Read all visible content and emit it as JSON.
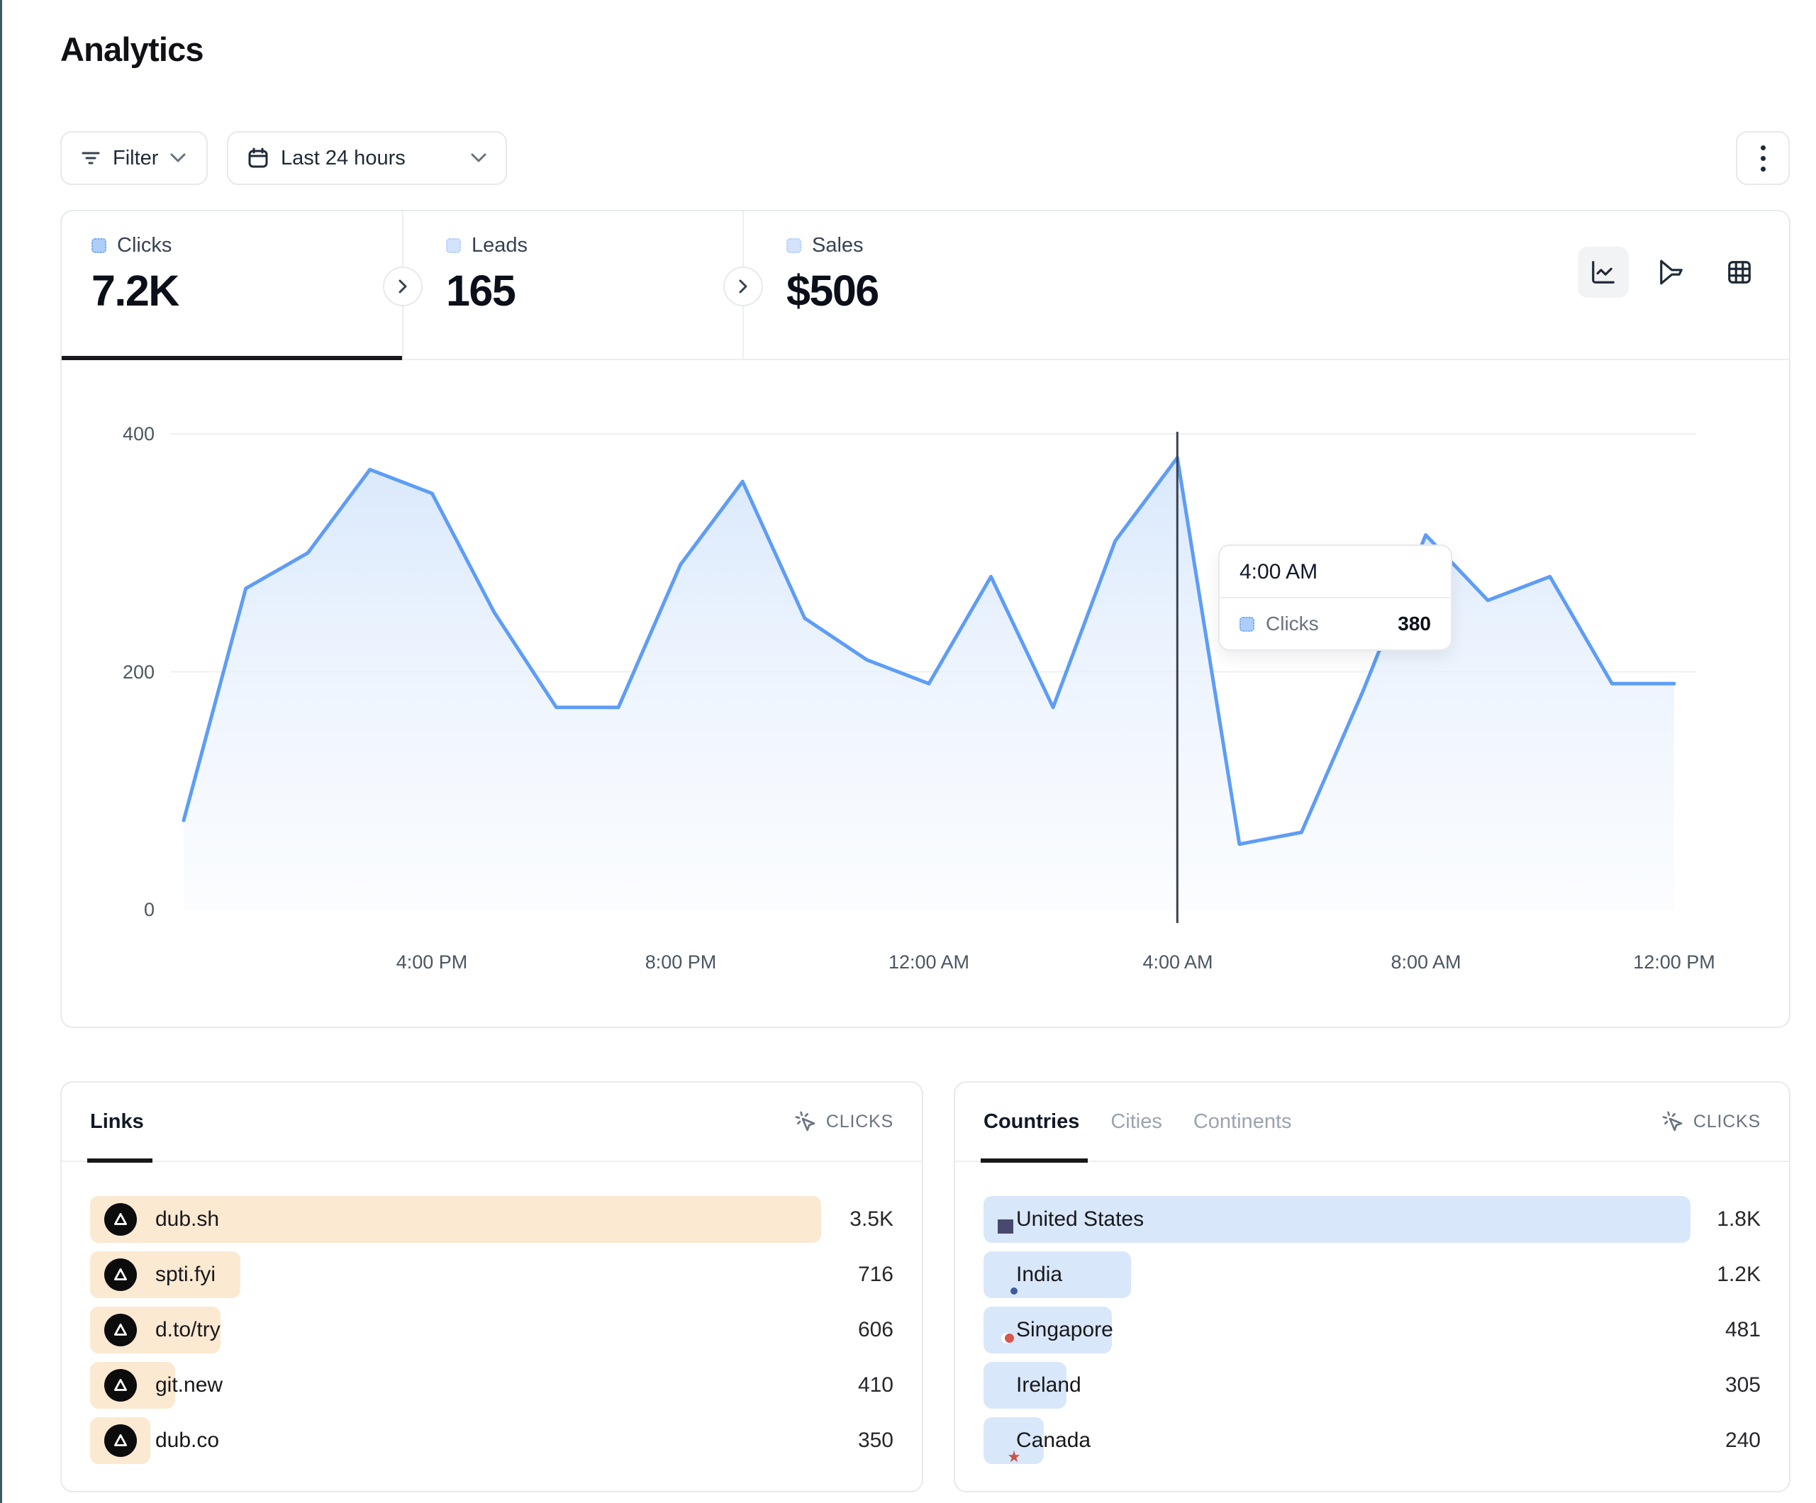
{
  "page": {
    "title": "Analytics"
  },
  "toolbar": {
    "filter": {
      "label": "Filter"
    },
    "date_range": {
      "label": "Last 24 hours"
    }
  },
  "stats": {
    "tabs": [
      {
        "label": "Clicks",
        "value": "7.2K",
        "active": true
      },
      {
        "label": "Leads",
        "value": "165",
        "active": false
      },
      {
        "label": "Sales",
        "value": "$506",
        "active": false
      }
    ]
  },
  "chart_data": {
    "type": "area",
    "series_name": "Clicks",
    "x": [
      "12:00 PM",
      "1:00 PM",
      "2:00 PM",
      "3:00 PM",
      "4:00 PM",
      "5:00 PM",
      "6:00 PM",
      "7:00 PM",
      "8:00 PM",
      "9:00 PM",
      "10:00 PM",
      "11:00 PM",
      "12:00 AM",
      "1:00 AM",
      "2:00 AM",
      "3:00 AM",
      "4:00 AM",
      "5:00 AM",
      "6:00 AM",
      "7:00 AM",
      "8:00 AM",
      "9:00 AM",
      "10:00 AM",
      "11:00 AM",
      "12:00 PM"
    ],
    "values": [
      75,
      270,
      300,
      370,
      350,
      250,
      170,
      170,
      290,
      360,
      245,
      210,
      190,
      280,
      170,
      310,
      380,
      55,
      65,
      185,
      315,
      260,
      280,
      190,
      190
    ],
    "xticks": [
      "4:00 PM",
      "8:00 PM",
      "12:00 AM",
      "4:00 AM",
      "8:00 AM",
      "12:00 PM"
    ],
    "yticks": [
      "0",
      "200",
      "400"
    ],
    "ylim": [
      0,
      410
    ],
    "grid": "horizontal",
    "legend": "none",
    "line_color": "#5e9df6",
    "fill_color": "#d7e7fc",
    "crosshair_index": 16,
    "tooltip": {
      "time": "4:00 AM",
      "series": "Clicks",
      "value": "380"
    }
  },
  "panels": {
    "links": {
      "tabs": [
        {
          "label": "Links",
          "active": true
        }
      ],
      "metric_label": "CLICKS",
      "bar_color": "#fbe9d2",
      "rows": [
        {
          "label": "dub.sh",
          "value": "3.5K",
          "bar_pct": 91.0
        },
        {
          "label": "spti.fyi",
          "value": "716",
          "bar_pct": 18.7
        },
        {
          "label": "d.to/try",
          "value": "606",
          "bar_pct": 16.2
        },
        {
          "label": "git.new",
          "value": "410",
          "bar_pct": 10.6
        },
        {
          "label": "dub.co",
          "value": "350",
          "bar_pct": 7.5
        }
      ]
    },
    "countries": {
      "tabs": [
        {
          "label": "Countries",
          "active": true
        },
        {
          "label": "Cities",
          "active": false
        },
        {
          "label": "Continents",
          "active": false
        }
      ],
      "metric_label": "CLICKS",
      "bar_color": "#d9e7fb",
      "rows": [
        {
          "label": "United States",
          "value": "1.8K",
          "flag": "us",
          "bar_pct": 91.0
        },
        {
          "label": "India",
          "value": "1.2K",
          "flag": "in",
          "bar_pct": 19.0
        },
        {
          "label": "Singapore",
          "value": "481",
          "flag": "sg",
          "bar_pct": 16.5
        },
        {
          "label": "Ireland",
          "value": "305",
          "flag": "ie",
          "bar_pct": 10.7
        },
        {
          "label": "Canada",
          "value": "240",
          "flag": "ca",
          "bar_pct": 7.8
        }
      ]
    }
  },
  "icons": {
    "filter": "filter-lines",
    "date_range": "calendar",
    "dropdown": "chevron-down",
    "more_menu": "kebab-vertical-dots",
    "stat_next": "chevron-right-circle",
    "view_line": "line-chart",
    "view_funnel": "funnel",
    "view_table": "table-grid",
    "metric_sort": "cursor-click",
    "link_favicon": "dub-logo-triangle",
    "flags": [
      "us",
      "in",
      "sg",
      "ie",
      "ca"
    ]
  }
}
